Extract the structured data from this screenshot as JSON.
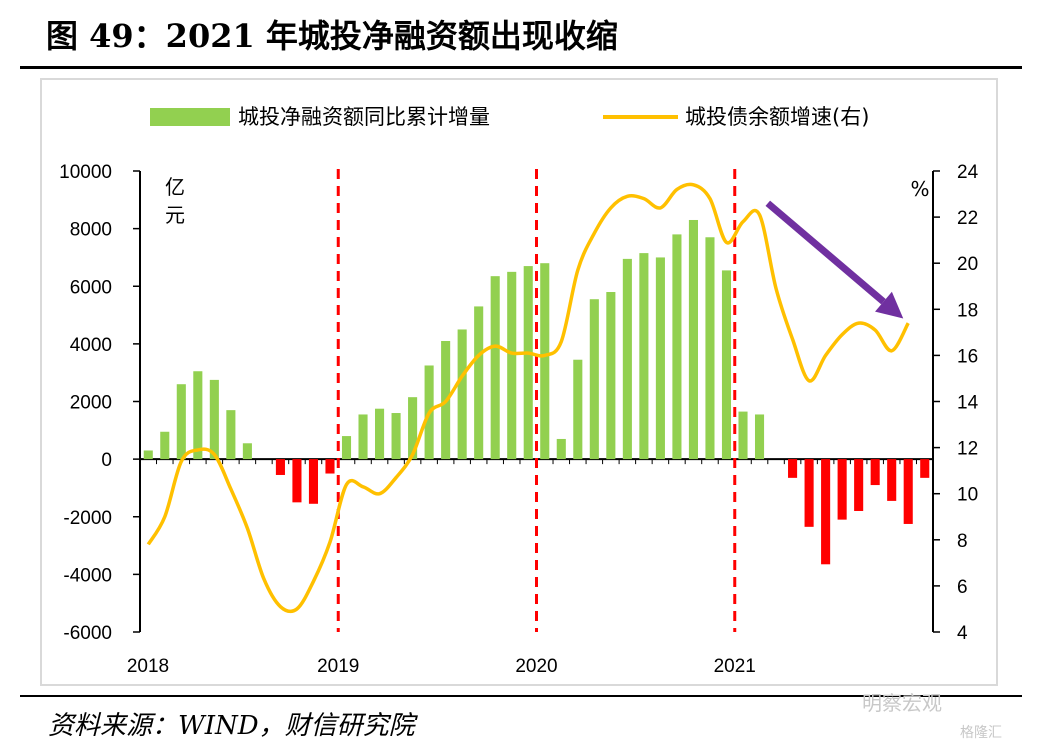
{
  "figure": {
    "title": "图 49：2021 年城投净融资额出现收缩",
    "source": "资料来源：WIND，财信研究院",
    "watermark": "明察宏观",
    "watermark_sub": "格隆汇"
  },
  "colors": {
    "bar_positive": "#92d050",
    "bar_negative": "#ff0000",
    "line": "#ffc000",
    "divider": "#ff0000",
    "arrow": "#7030a0"
  },
  "chart_data": {
    "type": "bar+line",
    "title": "",
    "xlabel": "",
    "units": {
      "left": "亿元",
      "right": "%"
    },
    "left_unit_chars": [
      "亿",
      "元"
    ],
    "yleft": {
      "min": -6000,
      "max": 10000,
      "ticks": [
        10000,
        8000,
        6000,
        4000,
        2000,
        0,
        -2000,
        -4000,
        -6000
      ]
    },
    "yright": {
      "min": 4,
      "max": 24,
      "ticks": [
        24,
        22,
        20,
        18,
        16,
        14,
        12,
        10,
        8,
        6,
        4
      ]
    },
    "year_labels": [
      "2018",
      "2019",
      "2020",
      "2021"
    ],
    "year_start_index": [
      0,
      12,
      24,
      36
    ],
    "divider_after_index": [
      11,
      23,
      35
    ],
    "months": 48,
    "series": [
      {
        "name": "城投净融资额同比累计增量",
        "kind": "bar",
        "axis": "left",
        "values": [
          300,
          950,
          2600,
          3050,
          2750,
          1700,
          550,
          0,
          -550,
          -1500,
          -1550,
          -500,
          800,
          1550,
          1750,
          1600,
          2150,
          3250,
          4100,
          4500,
          5300,
          6350,
          6500,
          6700,
          6800,
          700,
          3450,
          5550,
          5800,
          6950,
          7150,
          7000,
          7800,
          8300,
          7700,
          6550,
          1650,
          1550,
          0,
          -650,
          -2350,
          -3650,
          -2100,
          -1800,
          -900,
          -1450,
          -2250,
          -650
        ]
      },
      {
        "name": "城投债余额增速(右)",
        "kind": "line",
        "axis": "right",
        "values": [
          7.8,
          9.0,
          11.4,
          11.9,
          11.7,
          10.2,
          8.5,
          6.3,
          5.1,
          5.0,
          6.2,
          7.9,
          10.4,
          10.3,
          10.0,
          10.7,
          11.7,
          13.5,
          14.0,
          15.1,
          16.0,
          16.4,
          16.1,
          16.1,
          16.0,
          16.6,
          19.7,
          21.3,
          22.4,
          22.9,
          22.8,
          22.4,
          23.2,
          23.4,
          22.8,
          20.9,
          21.8,
          22.1,
          18.9,
          16.7,
          14.9,
          16.0,
          16.9,
          17.4,
          17.1,
          16.2,
          17.4
        ]
      }
    ],
    "annotation": {
      "type": "arrow",
      "from_index": 37.5,
      "from_value": 22.6,
      "to_index": 45.7,
      "to_value": 17.6,
      "axis": "right"
    }
  }
}
